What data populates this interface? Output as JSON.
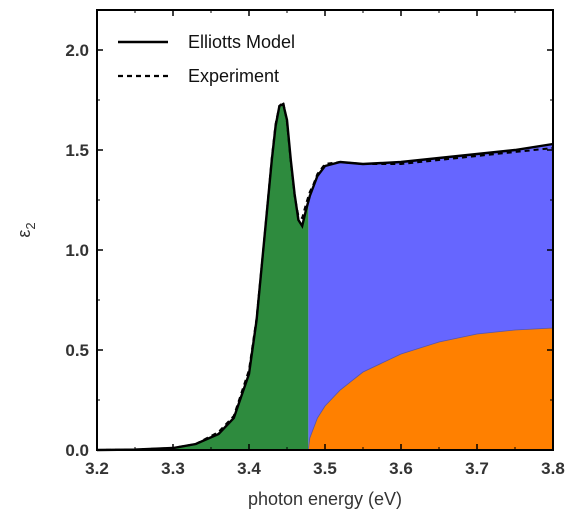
{
  "chart_data": {
    "type": "area",
    "title": "",
    "xlabel": "photon energy (eV)",
    "ylabel": "ε",
    "ylabel_subscript": "2",
    "xlim": [
      3.2,
      3.8
    ],
    "ylim": [
      0.0,
      2.2
    ],
    "x_ticks": [
      "3.2",
      "3.3",
      "3.4",
      "3.5",
      "3.6",
      "3.7",
      "3.8"
    ],
    "y_ticks": [
      "0.0",
      "0.5",
      "1.0",
      "1.5",
      "2.0"
    ],
    "grid": false,
    "legend_position": "top-left",
    "colors": {
      "excitonic_fill": "#2e8b3e",
      "continuum_fill": "#6666ff",
      "background_fill": "#ff8000",
      "model_line": "#000000",
      "experiment_line": "#000000"
    },
    "series": [
      {
        "name": "Elliotts Model",
        "style": "solid",
        "x": [
          3.2,
          3.25,
          3.3,
          3.33,
          3.36,
          3.38,
          3.4,
          3.41,
          3.42,
          3.43,
          3.435,
          3.44,
          3.445,
          3.45,
          3.455,
          3.46,
          3.465,
          3.47,
          3.475,
          3.48,
          3.485,
          3.49,
          3.5,
          3.52,
          3.55,
          3.6,
          3.65,
          3.7,
          3.75,
          3.8
        ],
        "y": [
          0.0,
          0.002,
          0.01,
          0.03,
          0.08,
          0.16,
          0.38,
          0.65,
          1.05,
          1.45,
          1.62,
          1.72,
          1.73,
          1.65,
          1.45,
          1.28,
          1.15,
          1.12,
          1.2,
          1.27,
          1.32,
          1.37,
          1.42,
          1.44,
          1.43,
          1.44,
          1.46,
          1.48,
          1.5,
          1.53
        ]
      },
      {
        "name": "Experiment",
        "style": "dashed",
        "x": [
          3.2,
          3.25,
          3.3,
          3.33,
          3.36,
          3.38,
          3.4,
          3.41,
          3.42,
          3.43,
          3.435,
          3.44,
          3.445,
          3.45,
          3.455,
          3.46,
          3.465,
          3.47,
          3.475,
          3.48,
          3.485,
          3.49,
          3.5,
          3.52,
          3.55,
          3.6,
          3.65,
          3.7,
          3.75,
          3.8
        ],
        "y": [
          0.0,
          0.002,
          0.01,
          0.03,
          0.09,
          0.17,
          0.4,
          0.66,
          1.05,
          1.46,
          1.63,
          1.72,
          1.74,
          1.64,
          1.44,
          1.27,
          1.17,
          1.16,
          1.23,
          1.29,
          1.33,
          1.38,
          1.43,
          1.44,
          1.43,
          1.43,
          1.45,
          1.47,
          1.49,
          1.51
        ]
      }
    ],
    "regions": [
      {
        "id": "excitonic",
        "x_from": 3.2,
        "x_to": 3.478,
        "under": "Elliotts Model"
      },
      {
        "id": "continuum",
        "x_from": 3.478,
        "x_to": 3.8,
        "under": "Elliotts Model"
      },
      {
        "id": "background",
        "x": [
          3.478,
          3.48,
          3.49,
          3.5,
          3.52,
          3.55,
          3.6,
          3.65,
          3.7,
          3.75,
          3.8
        ],
        "y": [
          0.0,
          0.06,
          0.16,
          0.22,
          0.3,
          0.39,
          0.48,
          0.54,
          0.58,
          0.6,
          0.61
        ]
      }
    ]
  }
}
